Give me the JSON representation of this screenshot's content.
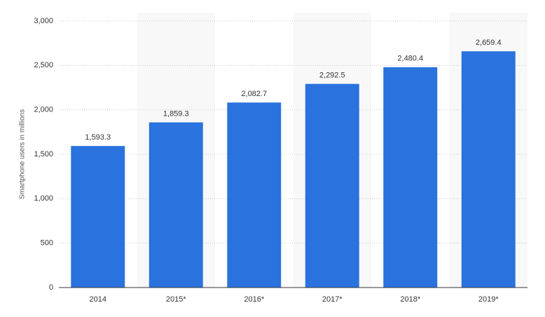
{
  "chart_data": {
    "type": "bar",
    "y_label": "Smartphone users in millions",
    "categories": [
      "2014",
      "2015*",
      "2016*",
      "2017*",
      "2018*",
      "2019*"
    ],
    "values": [
      1593.3,
      1859.3,
      2082.7,
      2292.5,
      2480.4,
      2659.4
    ],
    "value_labels": [
      "1,593.3",
      "1,859.3",
      "2,082.7",
      "2,292.5",
      "2,480.4",
      "2,659.4"
    ],
    "color": "#2a72de",
    "ylim": [
      0,
      3000
    ],
    "yticks": [
      0,
      500,
      {
        "value": 1000,
        "label": "1,000"
      },
      {
        "value": 1500,
        "label": "1,500"
      },
      {
        "value": 2000,
        "label": "2,000"
      },
      {
        "value": 2500,
        "label": "2,500"
      },
      {
        "value": 3000,
        "label": "3,000"
      }
    ],
    "grid": true
  }
}
